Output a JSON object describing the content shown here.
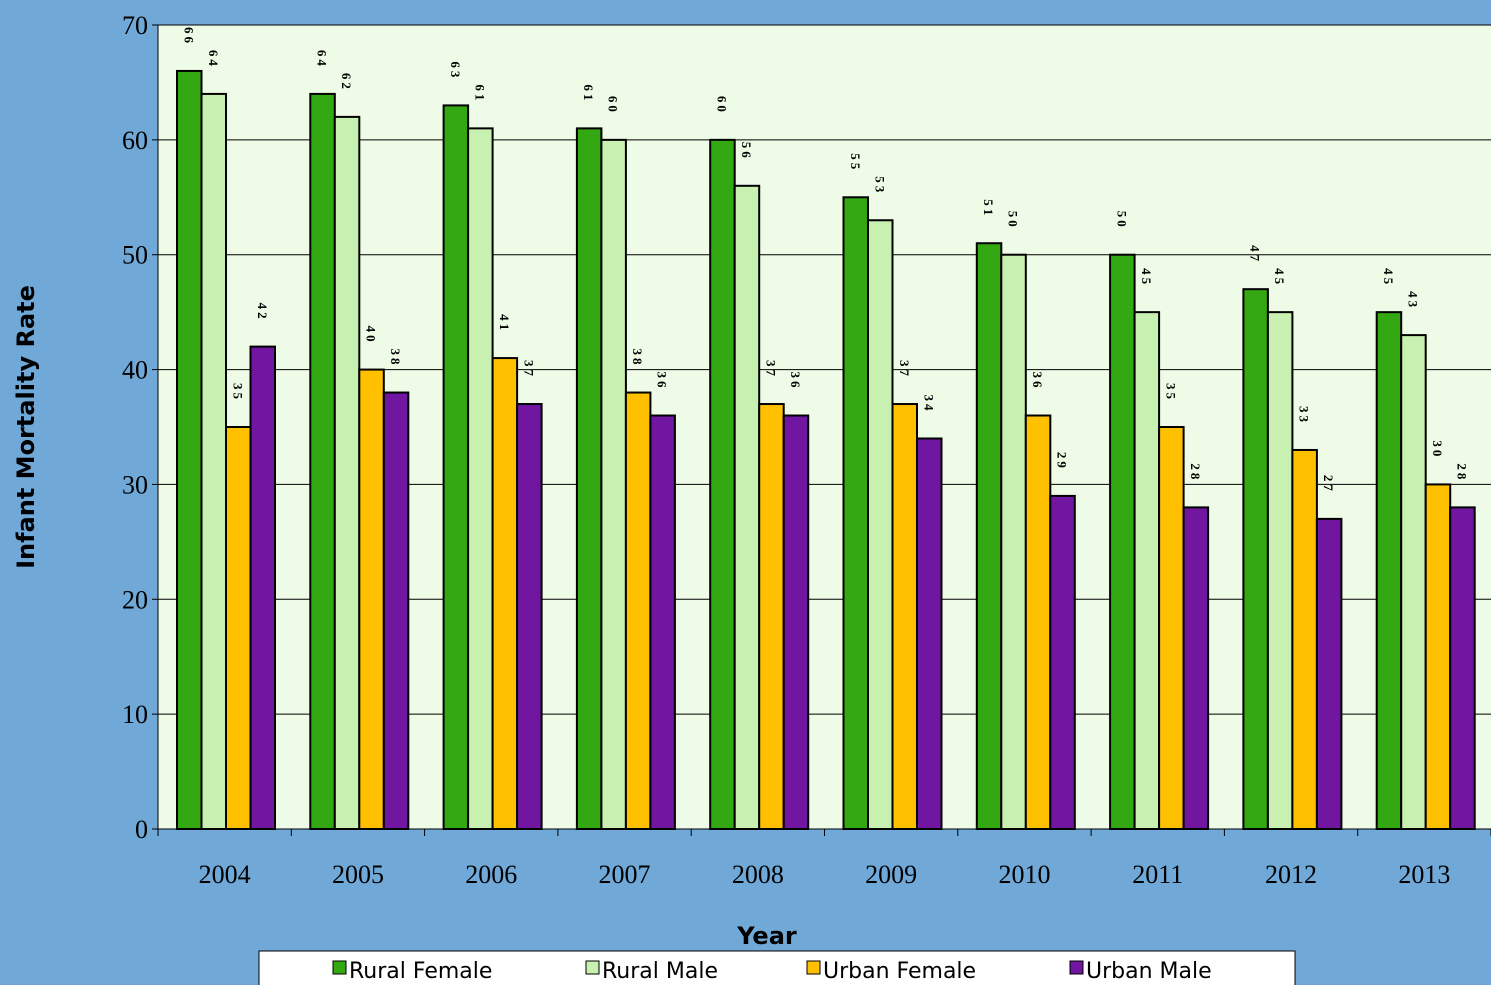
{
  "chart_data": {
    "type": "bar",
    "x_label": "Year",
    "y_label": "Infant Mortality Rate",
    "categories": [
      "2004",
      "2005",
      "2006",
      "2007",
      "2008",
      "2009",
      "2010",
      "2011",
      "2012",
      "2013"
    ],
    "series": [
      {
        "name": "Rural Female",
        "color": "#33a812",
        "values": [
          66,
          64,
          63,
          61,
          60,
          55,
          51,
          50,
          47,
          45
        ]
      },
      {
        "name": "Rural Male",
        "color": "#c8f0b0",
        "values": [
          64,
          62,
          61,
          60,
          56,
          53,
          50,
          45,
          45,
          43
        ]
      },
      {
        "name": "Urban Female",
        "color": "#ffc000",
        "values": [
          35,
          40,
          41,
          38,
          37,
          37,
          36,
          35,
          33,
          30
        ]
      },
      {
        "name": "Urban Male",
        "color": "#7016a0",
        "values": [
          42,
          38,
          37,
          36,
          36,
          34,
          29,
          28,
          27,
          28
        ]
      }
    ],
    "ylim": [
      0,
      70
    ],
    "yticks": [
      0,
      10,
      20,
      30,
      40,
      50,
      60,
      70
    ],
    "grid": true,
    "legend": "bottom"
  }
}
